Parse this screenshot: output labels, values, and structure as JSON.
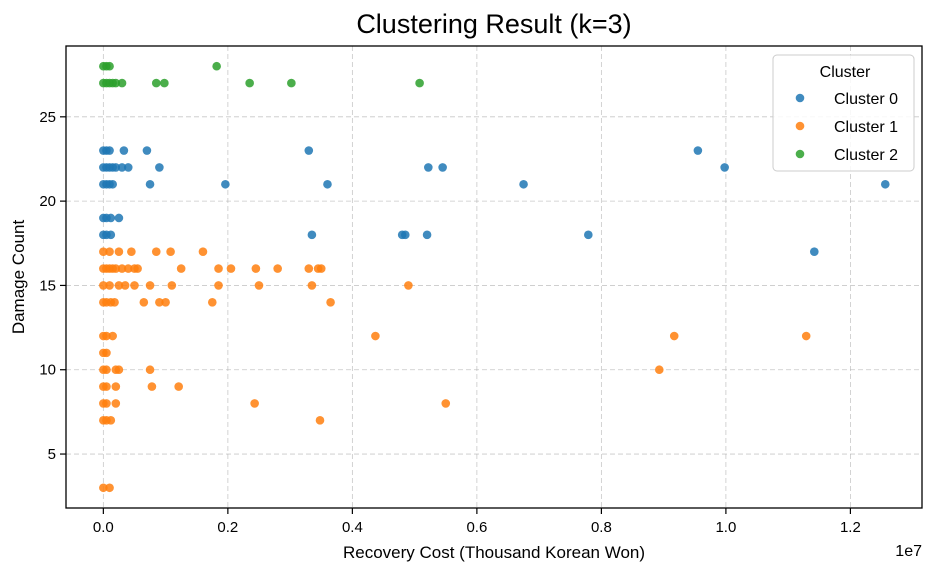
{
  "chart_data": {
    "type": "scatter",
    "title": "Clustering Result (k=3)",
    "xlabel": "Recovery Cost (Thousand Korean Won)",
    "ylabel": "Damage Count",
    "x_offset_label": "1e7",
    "x_scale": 10000000,
    "xlim": [
      -0.06,
      1.315
    ],
    "ylim": [
      1.8,
      29.2
    ],
    "xticks": [
      0.0,
      0.2,
      0.4,
      0.6,
      0.8,
      1.0,
      1.2
    ],
    "xtick_labels": [
      "0.0",
      "0.2",
      "0.4",
      "0.6",
      "0.8",
      "1.0",
      "1.2"
    ],
    "yticks": [
      5,
      10,
      15,
      20,
      25
    ],
    "ytick_labels": [
      "5",
      "10",
      "15",
      "20",
      "25"
    ],
    "grid": true,
    "legend": {
      "title": "Cluster",
      "position": "top-right"
    },
    "series": [
      {
        "name": "Cluster 0",
        "color": "#1f77b4",
        "points": [
          [
            0.0,
            23
          ],
          [
            0.005,
            23
          ],
          [
            0.01,
            23
          ],
          [
            0.0,
            22
          ],
          [
            0.005,
            22
          ],
          [
            0.01,
            22
          ],
          [
            0.015,
            22
          ],
          [
            0.02,
            22
          ],
          [
            0.03,
            22
          ],
          [
            0.04,
            22
          ],
          [
            0.0,
            21
          ],
          [
            0.005,
            21
          ],
          [
            0.01,
            21
          ],
          [
            0.015,
            21
          ],
          [
            0.0,
            19
          ],
          [
            0.005,
            19
          ],
          [
            0.012,
            19
          ],
          [
            0.025,
            19
          ],
          [
            0.0,
            18
          ],
          [
            0.005,
            18
          ],
          [
            0.012,
            18
          ],
          [
            0.033,
            23
          ],
          [
            0.07,
            23
          ],
          [
            0.09,
            22
          ],
          [
            0.075,
            21
          ],
          [
            0.196,
            21
          ],
          [
            0.33,
            23
          ],
          [
            0.36,
            21
          ],
          [
            0.335,
            18
          ],
          [
            0.48,
            18
          ],
          [
            0.485,
            18
          ],
          [
            0.52,
            18
          ],
          [
            0.522,
            22
          ],
          [
            0.545,
            22
          ],
          [
            0.675,
            21
          ],
          [
            0.779,
            18
          ],
          [
            0.955,
            23
          ],
          [
            0.998,
            22
          ],
          [
            1.142,
            17
          ],
          [
            1.256,
            21
          ]
        ]
      },
      {
        "name": "Cluster 1",
        "color": "#ff7f0e",
        "points": [
          [
            0.0,
            17
          ],
          [
            0.01,
            17
          ],
          [
            0.025,
            17
          ],
          [
            0.045,
            17
          ],
          [
            0.085,
            17
          ],
          [
            0.108,
            17
          ],
          [
            0.16,
            17
          ],
          [
            0.0,
            16
          ],
          [
            0.005,
            16
          ],
          [
            0.01,
            16
          ],
          [
            0.015,
            16
          ],
          [
            0.02,
            16
          ],
          [
            0.03,
            16
          ],
          [
            0.04,
            16
          ],
          [
            0.05,
            16
          ],
          [
            0.055,
            16
          ],
          [
            0.125,
            16
          ],
          [
            0.185,
            16
          ],
          [
            0.205,
            16
          ],
          [
            0.245,
            16
          ],
          [
            0.28,
            16
          ],
          [
            0.33,
            16
          ],
          [
            0.345,
            16
          ],
          [
            0.35,
            16
          ],
          [
            0.0,
            15
          ],
          [
            0.01,
            15
          ],
          [
            0.025,
            15
          ],
          [
            0.035,
            15
          ],
          [
            0.05,
            15
          ],
          [
            0.075,
            15
          ],
          [
            0.11,
            15
          ],
          [
            0.185,
            15
          ],
          [
            0.25,
            15
          ],
          [
            0.335,
            15
          ],
          [
            0.49,
            15
          ],
          [
            0.0,
            14
          ],
          [
            0.005,
            14
          ],
          [
            0.012,
            14
          ],
          [
            0.018,
            14
          ],
          [
            0.065,
            14
          ],
          [
            0.09,
            14
          ],
          [
            0.1,
            14
          ],
          [
            0.175,
            14
          ],
          [
            0.365,
            14
          ],
          [
            0.0,
            12
          ],
          [
            0.005,
            12
          ],
          [
            0.015,
            12
          ],
          [
            0.437,
            12
          ],
          [
            0.917,
            12
          ],
          [
            1.129,
            12
          ],
          [
            0.0,
            11
          ],
          [
            0.005,
            11
          ],
          [
            0.0,
            10
          ],
          [
            0.005,
            10
          ],
          [
            0.02,
            10
          ],
          [
            0.025,
            10
          ],
          [
            0.075,
            10
          ],
          [
            0.893,
            10
          ],
          [
            0.0,
            9
          ],
          [
            0.005,
            9
          ],
          [
            0.02,
            9
          ],
          [
            0.078,
            9
          ],
          [
            0.121,
            9
          ],
          [
            0.0,
            8
          ],
          [
            0.005,
            8
          ],
          [
            0.02,
            8
          ],
          [
            0.243,
            8
          ],
          [
            0.55,
            8
          ],
          [
            0.0,
            7
          ],
          [
            0.005,
            7
          ],
          [
            0.012,
            7
          ],
          [
            0.348,
            7
          ],
          [
            0.0,
            3
          ],
          [
            0.01,
            3
          ]
        ]
      },
      {
        "name": "Cluster 2",
        "color": "#2ca02c",
        "points": [
          [
            0.0,
            28
          ],
          [
            0.005,
            28
          ],
          [
            0.01,
            28
          ],
          [
            0.0,
            27
          ],
          [
            0.005,
            27
          ],
          [
            0.01,
            27
          ],
          [
            0.015,
            27
          ],
          [
            0.02,
            27
          ],
          [
            0.03,
            27
          ],
          [
            0.085,
            27
          ],
          [
            0.098,
            27
          ],
          [
            0.182,
            28
          ],
          [
            0.235,
            27
          ],
          [
            0.302,
            27
          ],
          [
            0.508,
            27
          ]
        ]
      }
    ]
  }
}
